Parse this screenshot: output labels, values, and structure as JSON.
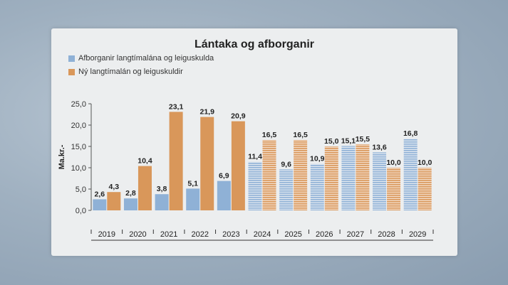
{
  "colors": {
    "blue": "#8fb1d6",
    "orange": "#d9975a",
    "blue_forecast": "#a9c2dd",
    "orange_forecast": "#e2aa78"
  },
  "chart_data": {
    "type": "bar",
    "title": "Lántaka og afborganir",
    "ylabel": "Ma.kr.-",
    "ylim": [
      0,
      25
    ],
    "yticks": [
      "0,0",
      "5,0",
      "10,0",
      "15,0",
      "20,0",
      "25,0"
    ],
    "categories": [
      "2019",
      "2020",
      "2021",
      "2022",
      "2023",
      "2024",
      "2025",
      "2026",
      "2027",
      "2028",
      "2029"
    ],
    "forecast_from": "2024",
    "series": [
      {
        "name": "Afborganir langtímalána og leiguskulda",
        "values": [
          2.6,
          2.8,
          3.8,
          5.1,
          6.9,
          11.4,
          9.6,
          10.9,
          15.1,
          13.6,
          16.8
        ],
        "labels": [
          "2,6",
          "2,8",
          "3,8",
          "5,1",
          "6,9",
          "11,4",
          "9,6",
          "10,9",
          "15,1",
          "13,6",
          "16,8"
        ]
      },
      {
        "name": "Ný langtímalán og leiguskuldir",
        "values": [
          4.3,
          10.4,
          23.1,
          21.9,
          20.9,
          16.5,
          16.5,
          15.0,
          15.5,
          10.0,
          10.0
        ],
        "labels": [
          "4,3",
          "10,4",
          "23,1",
          "21,9",
          "20,9",
          "16,5",
          "16,5",
          "15,0",
          "15,5",
          "10,0",
          "10,0"
        ]
      }
    ]
  }
}
